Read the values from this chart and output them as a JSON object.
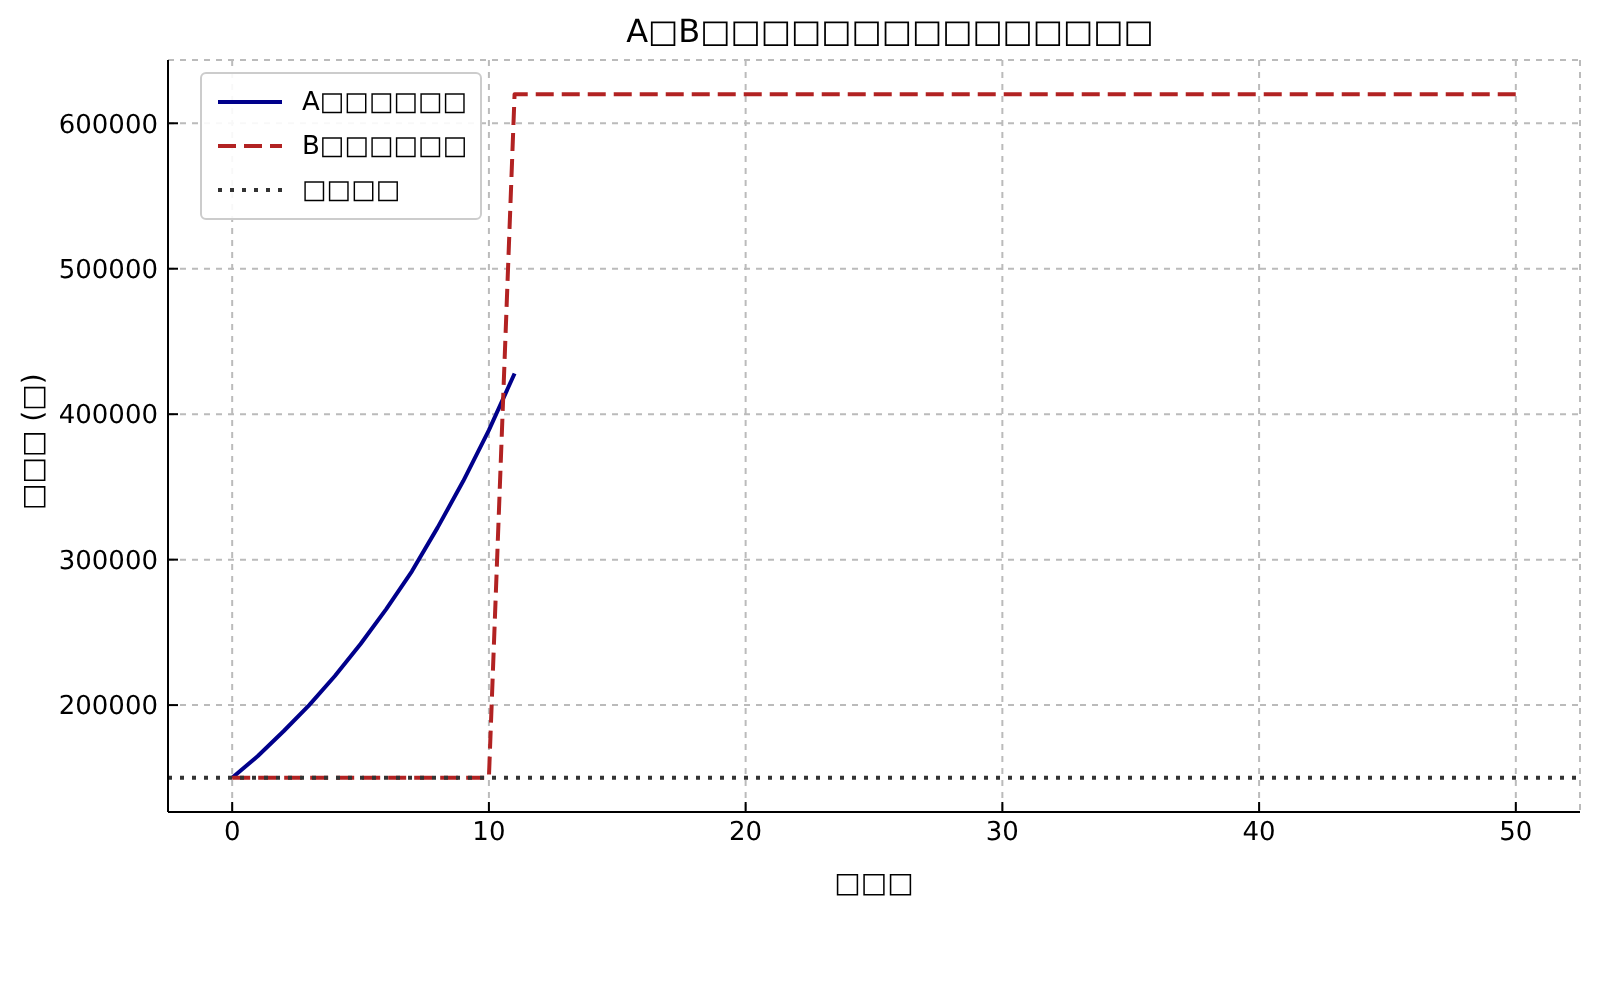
{
  "chart_data": {
    "type": "line",
    "title": "A□B□□□□□□□□□□□□□□□",
    "xlabel": "□□□",
    "ylabel": "□□□ (□)",
    "xlim": [
      -2.5,
      52.5
    ],
    "xticks": [
      0,
      10,
      20,
      30,
      40,
      50
    ],
    "ylim": [
      126500,
      643500
    ],
    "yticks": [
      200000,
      300000,
      400000,
      500000,
      600000
    ],
    "grid": true,
    "legend": "top left",
    "marker": "none",
    "series": [
      {
        "name": "A□□□□□□",
        "color": "#00008b",
        "line_style": "solid",
        "x": [
          0,
          1,
          2,
          3,
          4,
          5,
          6,
          7,
          8,
          9,
          10,
          11
        ],
        "values": [
          150000,
          165000,
          182000,
          200000,
          220000,
          242000,
          266000,
          292000,
          322000,
          354000,
          389000,
          428000
        ]
      },
      {
        "name": "B□□□□□□",
        "color": "#b22222",
        "line_style": "dashed",
        "x": [
          0,
          10,
          11,
          50
        ],
        "values": [
          150000,
          150000,
          620000,
          620000
        ]
      },
      {
        "name": "□□□□",
        "color": "#333333",
        "line_style": "dotted",
        "x": [
          -2.5,
          52.5
        ],
        "values": [
          150000,
          150000
        ]
      }
    ]
  }
}
